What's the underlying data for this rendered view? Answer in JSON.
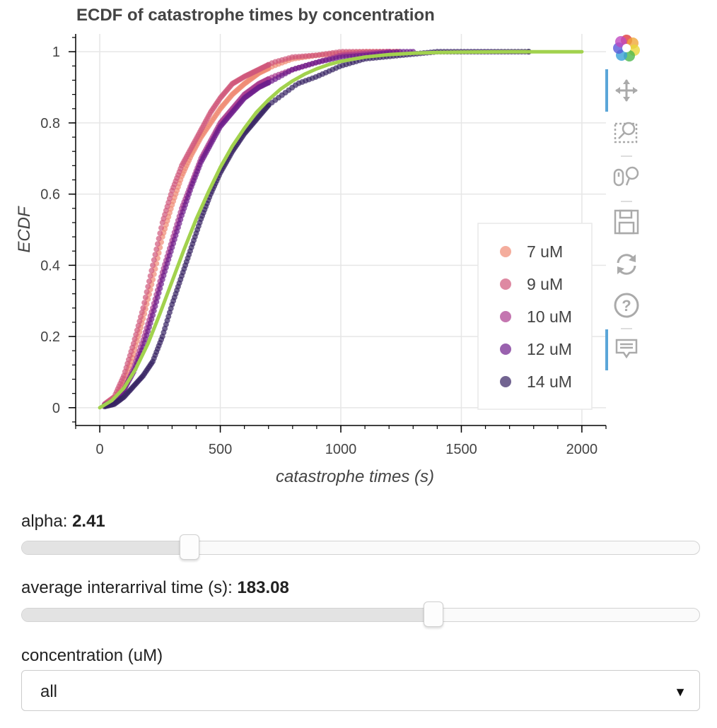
{
  "chart_data": {
    "type": "scatter",
    "title": "ECDF of catastrophe times by concentration",
    "xlabel": "catastrophe times (s)",
    "ylabel": "ECDF",
    "xlim": [
      -100,
      2100
    ],
    "ylim": [
      -0.05,
      1.05
    ],
    "x_ticks": [
      0,
      500,
      1000,
      1500,
      2000
    ],
    "x_tick_labels": [
      "0",
      "500",
      "1000",
      "1500",
      "2000"
    ],
    "y_ticks": [
      0,
      0.2,
      0.4,
      0.6,
      0.8,
      1
    ],
    "y_tick_labels": [
      "0",
      "0.2",
      "0.4",
      "0.6",
      "0.8",
      "1"
    ],
    "grid": true,
    "legend_position": "right-bottom",
    "series": [
      {
        "name": "7 uM",
        "color": "#F08A74",
        "points": [
          [
            0,
            0
          ],
          [
            60,
            0.02
          ],
          [
            100,
            0.07
          ],
          [
            140,
            0.15
          ],
          [
            180,
            0.25
          ],
          [
            220,
            0.36
          ],
          [
            260,
            0.48
          ],
          [
            300,
            0.57
          ],
          [
            340,
            0.65
          ],
          [
            380,
            0.71
          ],
          [
            420,
            0.76
          ],
          [
            460,
            0.8
          ],
          [
            500,
            0.84
          ],
          [
            550,
            0.88
          ],
          [
            600,
            0.91
          ],
          [
            660,
            0.94
          ],
          [
            720,
            0.96
          ],
          [
            800,
            0.98
          ],
          [
            900,
            0.99
          ],
          [
            1000,
            0.995
          ],
          [
            1100,
            1.0
          ],
          [
            1240,
            1.0
          ]
        ]
      },
      {
        "name": "9 uM",
        "color": "#D0577A",
        "points": [
          [
            0,
            0
          ],
          [
            60,
            0.03
          ],
          [
            100,
            0.09
          ],
          [
            140,
            0.18
          ],
          [
            180,
            0.28
          ],
          [
            220,
            0.4
          ],
          [
            260,
            0.52
          ],
          [
            300,
            0.61
          ],
          [
            340,
            0.68
          ],
          [
            380,
            0.73
          ],
          [
            420,
            0.78
          ],
          [
            460,
            0.83
          ],
          [
            500,
            0.87
          ],
          [
            550,
            0.91
          ],
          [
            600,
            0.93
          ],
          [
            660,
            0.95
          ],
          [
            720,
            0.97
          ],
          [
            800,
            0.985
          ],
          [
            900,
            0.99
          ],
          [
            1000,
            1.0
          ],
          [
            1230,
            1.0
          ]
        ]
      },
      {
        "name": "10 uM",
        "color": "#AB3C8E",
        "points": [
          [
            0,
            0
          ],
          [
            60,
            0.02
          ],
          [
            100,
            0.05
          ],
          [
            140,
            0.11
          ],
          [
            180,
            0.19
          ],
          [
            220,
            0.28
          ],
          [
            260,
            0.38
          ],
          [
            300,
            0.47
          ],
          [
            340,
            0.56
          ],
          [
            380,
            0.63
          ],
          [
            420,
            0.7
          ],
          [
            460,
            0.75
          ],
          [
            500,
            0.8
          ],
          [
            550,
            0.84
          ],
          [
            600,
            0.88
          ],
          [
            660,
            0.91
          ],
          [
            720,
            0.93
          ],
          [
            800,
            0.95
          ],
          [
            900,
            0.97
          ],
          [
            1000,
            0.99
          ],
          [
            1100,
            0.995
          ],
          [
            1200,
            1.0
          ]
        ]
      },
      {
        "name": "12 uM",
        "color": "#6E1E8C",
        "points": [
          [
            0,
            0
          ],
          [
            60,
            0.02
          ],
          [
            100,
            0.05
          ],
          [
            140,
            0.1
          ],
          [
            180,
            0.17
          ],
          [
            220,
            0.26
          ],
          [
            260,
            0.36
          ],
          [
            300,
            0.45
          ],
          [
            340,
            0.54
          ],
          [
            380,
            0.62
          ],
          [
            420,
            0.69
          ],
          [
            460,
            0.74
          ],
          [
            500,
            0.79
          ],
          [
            550,
            0.83
          ],
          [
            600,
            0.87
          ],
          [
            660,
            0.9
          ],
          [
            720,
            0.92
          ],
          [
            800,
            0.95
          ],
          [
            900,
            0.97
          ],
          [
            1000,
            0.985
          ],
          [
            1100,
            0.99
          ],
          [
            1240,
            1.0
          ],
          [
            1300,
            1.0
          ]
        ]
      },
      {
        "name": "14 uM",
        "color": "#362263",
        "points": [
          [
            0,
            0
          ],
          [
            60,
            0.01
          ],
          [
            100,
            0.03
          ],
          [
            140,
            0.06
          ],
          [
            180,
            0.09
          ],
          [
            220,
            0.13
          ],
          [
            260,
            0.2
          ],
          [
            300,
            0.29
          ],
          [
            340,
            0.37
          ],
          [
            380,
            0.45
          ],
          [
            420,
            0.53
          ],
          [
            460,
            0.6
          ],
          [
            500,
            0.66
          ],
          [
            550,
            0.72
          ],
          [
            600,
            0.77
          ],
          [
            650,
            0.81
          ],
          [
            700,
            0.85
          ],
          [
            760,
            0.88
          ],
          [
            820,
            0.91
          ],
          [
            900,
            0.93
          ],
          [
            1000,
            0.96
          ],
          [
            1100,
            0.98
          ],
          [
            1250,
            0.99
          ],
          [
            1400,
            1.0
          ],
          [
            1550,
            1.0
          ],
          [
            1780,
            1.0
          ]
        ]
      }
    ],
    "fit_curve": {
      "color": "#A2D24E",
      "points": [
        [
          0,
          0
        ],
        [
          50,
          0.02
        ],
        [
          100,
          0.055
        ],
        [
          150,
          0.11
        ],
        [
          200,
          0.18
        ],
        [
          250,
          0.265
        ],
        [
          300,
          0.355
        ],
        [
          350,
          0.445
        ],
        [
          400,
          0.53
        ],
        [
          450,
          0.605
        ],
        [
          500,
          0.675
        ],
        [
          550,
          0.735
        ],
        [
          600,
          0.785
        ],
        [
          650,
          0.83
        ],
        [
          700,
          0.865
        ],
        [
          750,
          0.895
        ],
        [
          800,
          0.918
        ],
        [
          850,
          0.937
        ],
        [
          900,
          0.952
        ],
        [
          950,
          0.964
        ],
        [
          1000,
          0.973
        ],
        [
          1100,
          0.985
        ],
        [
          1200,
          0.992
        ],
        [
          1300,
          0.996
        ],
        [
          1400,
          0.998
        ],
        [
          1500,
          0.999
        ],
        [
          1700,
          1.0
        ],
        [
          2000,
          1.0
        ]
      ]
    }
  },
  "legend": {
    "items": [
      "7 uM",
      "9 uM",
      "10 uM",
      "12 uM",
      "14 uM"
    ]
  },
  "toolbar": {
    "icons": [
      "bokeh-logo-icon",
      "pan-icon",
      "box-zoom-icon",
      "wheel-zoom-icon",
      "save-icon",
      "reset-icon",
      "help-icon",
      "hover-icon"
    ]
  },
  "controls": {
    "alpha": {
      "label": "alpha: ",
      "value": "2.41",
      "fraction": 0.247
    },
    "interarrival": {
      "label": "average interarrival time (s): ",
      "value": "183.08",
      "fraction": 0.608
    },
    "concentration": {
      "label": "concentration (uM)",
      "selected": "all"
    }
  }
}
